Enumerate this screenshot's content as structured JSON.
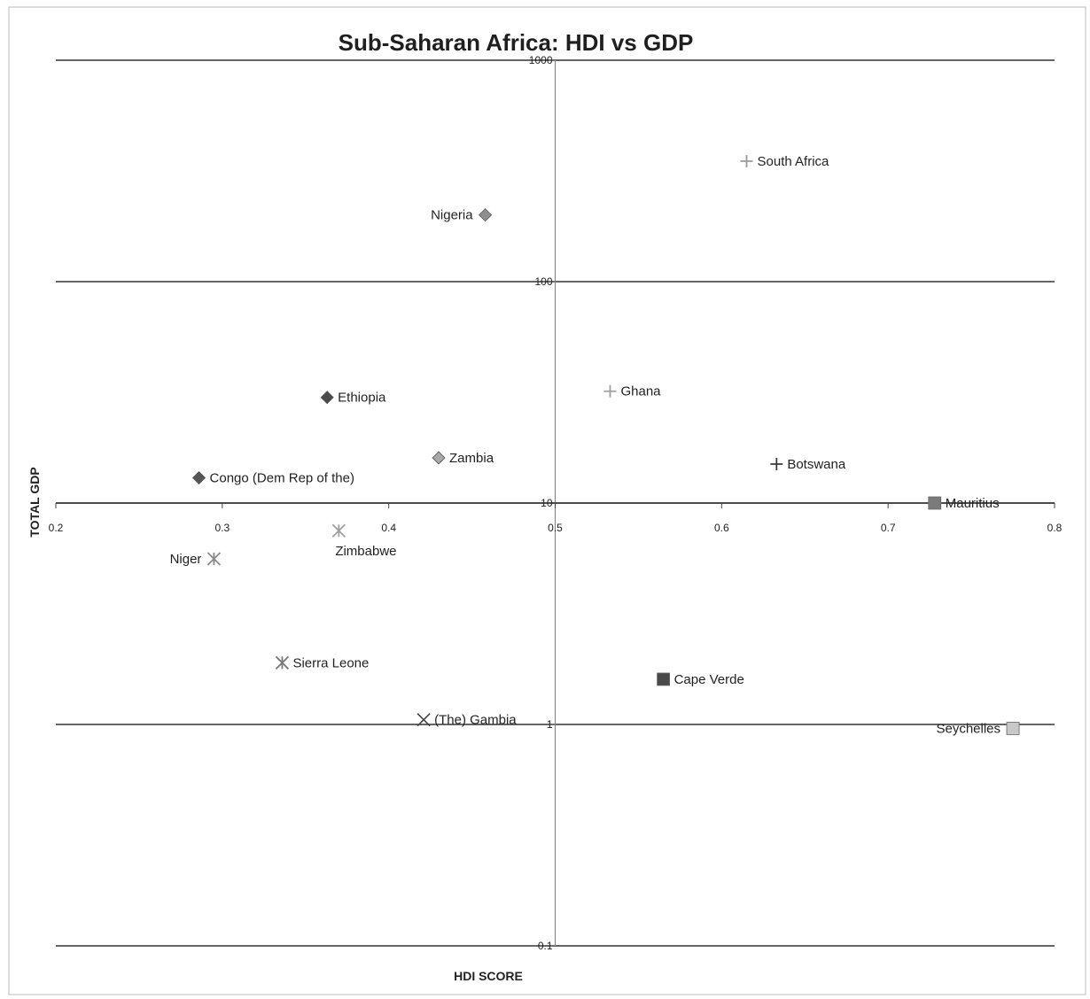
{
  "chart_data": {
    "type": "scatter",
    "title": "Sub-Saharan Africa: HDI vs GDP",
    "xlabel": "HDI SCORE",
    "ylabel": "TOTAL GDP",
    "xlim": [
      0.2,
      0.8
    ],
    "ylim": [
      0.1,
      1000
    ],
    "yscale": "log",
    "xticks": [
      "0.2",
      "0.3",
      "0.4",
      "0.5",
      "0.6",
      "0.7",
      "0.8"
    ],
    "yticks": [
      "0.1",
      "1",
      "10",
      "100",
      "1000"
    ],
    "grid": "horizontal",
    "legend": "none",
    "points": [
      {
        "label": "South Africa",
        "x": 0.615,
        "y": 350,
        "marker": "plus",
        "color": "#9a9a9a",
        "label_side": "right"
      },
      {
        "label": "Nigeria",
        "x": 0.458,
        "y": 200,
        "marker": "diamond",
        "color": "#8f8f8f",
        "label_side": "left"
      },
      {
        "label": "Ghana",
        "x": 0.533,
        "y": 32,
        "marker": "plus",
        "color": "#a0a0a0",
        "label_side": "right"
      },
      {
        "label": "Ethiopia",
        "x": 0.363,
        "y": 30,
        "marker": "diamond",
        "color": "#4a4a4a",
        "label_side": "right"
      },
      {
        "label": "Zambia",
        "x": 0.43,
        "y": 16,
        "marker": "diamond",
        "color": "#a8a8a8",
        "label_side": "right"
      },
      {
        "label": "Botswana",
        "x": 0.633,
        "y": 15,
        "marker": "plus",
        "color": "#3a3a3a",
        "label_side": "right"
      },
      {
        "label": "Congo (Dem Rep of the)",
        "x": 0.286,
        "y": 13,
        "marker": "diamond",
        "color": "#555555",
        "label_side": "right"
      },
      {
        "label": "Mauritius",
        "x": 0.728,
        "y": 10,
        "marker": "square",
        "color": "#7a7a7a",
        "label_side": "right"
      },
      {
        "label": "Zimbabwe",
        "x": 0.37,
        "y": 7.5,
        "marker": "star",
        "color": "#a0a0a0",
        "label_side": "below"
      },
      {
        "label": "Niger",
        "x": 0.295,
        "y": 5.6,
        "marker": "star",
        "color": "#8a8a8a",
        "label_side": "left"
      },
      {
        "label": "Sierra Leone",
        "x": 0.336,
        "y": 1.9,
        "marker": "star",
        "color": "#7a7a7a",
        "label_side": "right"
      },
      {
        "label": "Cape Verde",
        "x": 0.565,
        "y": 1.6,
        "marker": "square",
        "color": "#4a4a4a",
        "label_side": "right"
      },
      {
        "label": "(The) Gambia",
        "x": 0.421,
        "y": 1.05,
        "marker": "x",
        "color": "#444444",
        "label_side": "right"
      },
      {
        "label": "Seychelles",
        "x": 0.775,
        "y": 0.96,
        "marker": "square",
        "color": "#c8c8c8",
        "label_side": "left"
      }
    ]
  }
}
